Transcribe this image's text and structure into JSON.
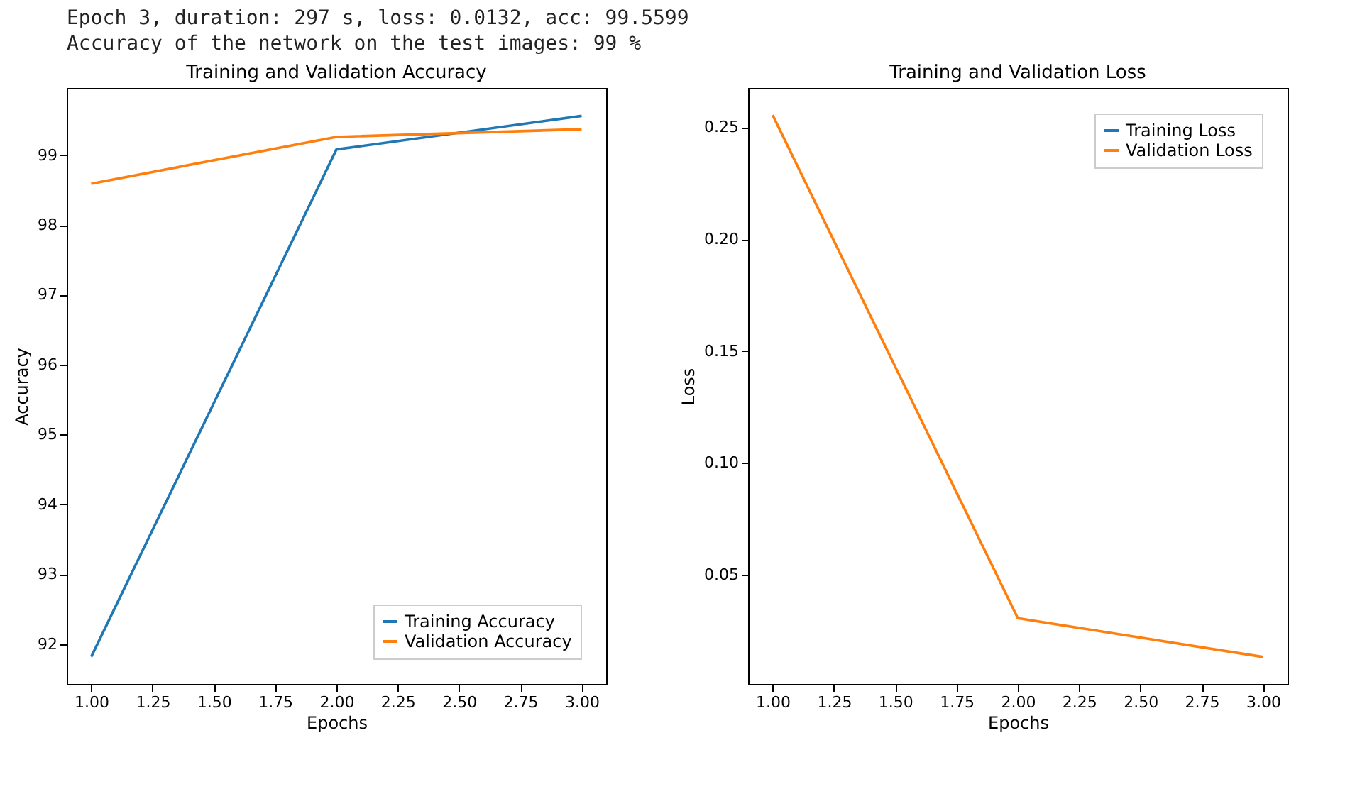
{
  "chart_data": [
    {
      "type": "line",
      "title": "Training and Validation Accuracy",
      "xlabel": "Epochs",
      "ylabel": "Accuracy",
      "annotations": [
        "Epoch 3, duration: 297 s, loss: 0.0132, acc: 99.5599",
        "Accuracy of the network on the test images: 99 %"
      ],
      "x": [
        1,
        2,
        3
      ],
      "series": [
        {
          "name": "Training Accuracy",
          "color": "#1f77b4",
          "values": [
            91.82,
            99.08,
            99.56
          ]
        },
        {
          "name": "Validation Accuracy",
          "color": "#ff7f0e",
          "values": [
            98.59,
            99.26,
            99.37
          ]
        }
      ],
      "xlim": [
        0.9,
        3.1
      ],
      "xticks": [
        {
          "value": 1,
          "label": "1.00"
        },
        {
          "value": 1.25,
          "label": "1.25"
        },
        {
          "value": 1.5,
          "label": "1.50"
        },
        {
          "value": 1.75,
          "label": "1.75"
        },
        {
          "value": 2,
          "label": "2.00"
        },
        {
          "value": 2.25,
          "label": "2.25"
        },
        {
          "value": 2.5,
          "label": "2.50"
        },
        {
          "value": 2.75,
          "label": "2.75"
        },
        {
          "value": 3,
          "label": "3.00"
        }
      ],
      "ylim": [
        91.43,
        99.96
      ],
      "yticks": [
        92,
        93,
        94,
        95,
        96,
        97,
        98,
        99
      ],
      "grid": false,
      "legend": "bottom right",
      "line_style": "solid",
      "marker": "none"
    },
    {
      "type": "line",
      "title": "Training and Validation Loss",
      "xlabel": "Epochs",
      "ylabel": "Loss",
      "x": [
        1,
        2,
        3
      ],
      "series": [
        {
          "name": "Training Loss",
          "color": "#1f77b4",
          "values": [
            null,
            null,
            null
          ]
        },
        {
          "name": "Validation Loss",
          "color": "#ff7f0e",
          "values": [
            0.2555,
            0.0305,
            0.0132
          ]
        }
      ],
      "xlim": [
        0.9,
        3.1
      ],
      "xticks": [
        {
          "value": 1,
          "label": "1.00"
        },
        {
          "value": 1.25,
          "label": "1.25"
        },
        {
          "value": 1.5,
          "label": "1.50"
        },
        {
          "value": 1.75,
          "label": "1.75"
        },
        {
          "value": 2,
          "label": "2.00"
        },
        {
          "value": 2.25,
          "label": "2.25"
        },
        {
          "value": 2.5,
          "label": "2.50"
        },
        {
          "value": 2.75,
          "label": "2.75"
        },
        {
          "value": 3,
          "label": "3.00"
        }
      ],
      "ylim": [
        0.0011,
        0.2676
      ],
      "yticks": [
        {
          "value": 0.05,
          "label": "0.05"
        },
        {
          "value": 0.1,
          "label": "0.10"
        },
        {
          "value": 0.15,
          "label": "0.15"
        },
        {
          "value": 0.2,
          "label": "0.20"
        },
        {
          "value": 0.25,
          "label": "0.25"
        }
      ],
      "grid": false,
      "legend": "top right",
      "line_style": "solid",
      "marker": "none"
    }
  ]
}
